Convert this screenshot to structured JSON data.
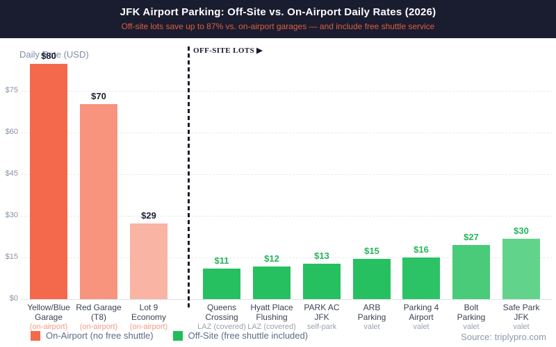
{
  "header": {
    "title": "JFK Airport Parking: Off-Site vs. On-Airport Daily Rates (2026)",
    "subtitle": "Off-site lots save up to 87% vs. on-airport garages — and include free shuttle service"
  },
  "chart_data": {
    "type": "bar",
    "title": "JFK Airport Parking: Off-Site vs. On-Airport Daily Rates (2026)",
    "subtitle": "Off-site lots save up to 87% vs. on-airport garages — and include free shuttle service",
    "ylabel": "Daily Rate (USD)",
    "ylim": [
      0,
      85
    ],
    "grid": "horizontal dashed",
    "yticks": [
      0,
      15,
      30,
      45,
      60,
      75
    ],
    "ytick_labels": [
      "$0",
      "$15",
      "$30",
      "$45",
      "$60",
      "$75"
    ],
    "divider_label": "OFF-SITE LOTS ▶",
    "categories": [
      "Yellow/Blue Garage",
      "Red Garage (T8)",
      "Lot 9 Economy",
      "Queens Crossing",
      "Hyatt Place Flushing",
      "PARK AC JFK",
      "ARB Parking",
      "Parking 4 Airport",
      "Bolt Parking",
      "Safe Park JFK"
    ],
    "values": [
      80,
      70,
      29,
      11,
      12,
      13,
      15,
      16,
      27,
      30
    ],
    "bars": [
      {
        "name_lines": [
          "Yellow/Blue",
          "Garage"
        ],
        "sublabel": "(on-airport)",
        "value": 80,
        "value_label": "$80",
        "group": "on-airport",
        "color": "#f4694b"
      },
      {
        "name_lines": [
          "Red Garage",
          "(T8)"
        ],
        "sublabel": "(on-airport)",
        "value": 70,
        "value_label": "$70",
        "group": "on-airport",
        "color": "#f8937d"
      },
      {
        "name_lines": [
          "Lot 9",
          "Economy"
        ],
        "sublabel": "(on-airport)",
        "value": 29,
        "value_label": "$29",
        "group": "on-airport",
        "color": "#fab4a3"
      },
      {
        "name_lines": [
          "Queens",
          "Crossing"
        ],
        "sublabel": "LAZ (covered)",
        "value": 11,
        "value_label": "$11",
        "group": "off-site",
        "color": "#27c061"
      },
      {
        "name_lines": [
          "Hyatt Place",
          "Flushing"
        ],
        "sublabel": "LAZ (covered)",
        "value": 12,
        "value_label": "$12",
        "group": "off-site",
        "color": "#27c061"
      },
      {
        "name_lines": [
          "PARK AC",
          "JFK"
        ],
        "sublabel": "self-park",
        "value": 13,
        "value_label": "$13",
        "group": "off-site",
        "color": "#27c061"
      },
      {
        "name_lines": [
          "ARB",
          "Parking"
        ],
        "sublabel": "valet",
        "value": 15,
        "value_label": "$15",
        "group": "off-site",
        "color": "#27c061"
      },
      {
        "name_lines": [
          "Parking 4",
          "Airport"
        ],
        "sublabel": "valet",
        "value": 16,
        "value_label": "$16",
        "group": "off-site",
        "color": "#2bc365"
      },
      {
        "name_lines": [
          "Bolt",
          "Parking"
        ],
        "sublabel": "valet",
        "value": 27,
        "value_label": "$27",
        "group": "off-site",
        "color": "#49cb79"
      },
      {
        "name_lines": [
          "Safe Park",
          "JFK"
        ],
        "sublabel": "valet",
        "value": 30,
        "value_label": "$30",
        "group": "off-site",
        "color": "#62d38b"
      }
    ],
    "value_label_colors": {
      "on-airport": "#1c2134",
      "off-site": "#25b45a"
    },
    "sublabel_colors": {
      "on-airport": "#f49a84",
      "off-site": "#9aa3b2"
    },
    "legend": [
      {
        "label": "On-Airport (no free shuttle)",
        "color": "#f4694b"
      },
      {
        "label": "Off-Site (free shuttle included)",
        "color": "#22bd58"
      }
    ],
    "legend_position": "bottom-left"
  },
  "footer": {
    "source": "Source: triplypro.com"
  }
}
